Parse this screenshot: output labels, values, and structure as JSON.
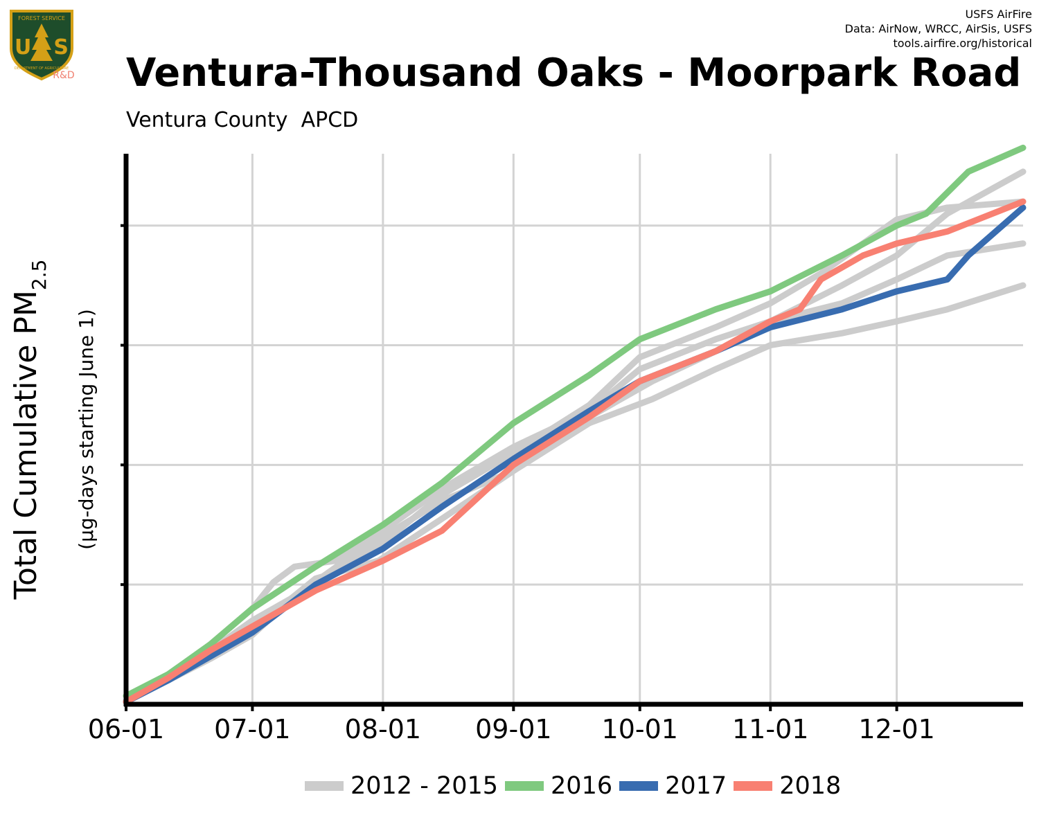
{
  "header": {
    "title": "Ventura-Thousand Oaks - Moorpark Road",
    "subtitle": "Ventura County  APCD",
    "credits": [
      "USFS AirFire",
      "Data: AirNow, WRCC, AirSis, USFS",
      "tools.airfire.org/historical"
    ],
    "logo": {
      "icon": "usfs-shield-logo",
      "text_top": "FOREST SERVICE",
      "text_main": "U S",
      "text_bottom": "DEPARTMENT OF AGRICULTURE",
      "text_rd": "R&D",
      "colors": {
        "shield": "#1e4d2b",
        "border": "#d4a017",
        "rd": "#f08070"
      }
    }
  },
  "chart_data": {
    "type": "line",
    "title": "Ventura-Thousand Oaks - Moorpark Road",
    "ylabel": "Total Cumulative PM",
    "ylabel_subscript": "2.5",
    "ylabel_units": "(µg-days starting June 1)",
    "xlabel": "",
    "x_ticks": [
      {
        "label": "06-01",
        "day": 0
      },
      {
        "label": "07-01",
        "day": 30
      },
      {
        "label": "08-01",
        "day": 61
      },
      {
        "label": "09-01",
        "day": 92
      },
      {
        "label": "10-01",
        "day": 122
      },
      {
        "label": "11-01",
        "day": 153
      },
      {
        "label": "12-01",
        "day": 183
      }
    ],
    "x_range_days": [
      0,
      213
    ],
    "y_range": [
      0,
      4.6
    ],
    "y_gridlines": [
      1,
      2,
      3,
      4
    ],
    "y_tick_labels_shown": false,
    "grid": true,
    "legend_position": "bottom",
    "series": [
      {
        "name": "2012 - 2015",
        "color": "#cccccc",
        "points": [
          [
            0,
            0.03
          ],
          [
            10,
            0.22
          ],
          [
            20,
            0.42
          ],
          [
            30,
            0.62
          ],
          [
            45,
            1.05
          ],
          [
            60,
            1.2
          ],
          [
            75,
            1.55
          ],
          [
            92,
            1.95
          ],
          [
            110,
            2.4
          ],
          [
            125,
            2.7
          ],
          [
            140,
            2.95
          ],
          [
            153,
            3.2
          ],
          [
            170,
            3.5
          ],
          [
            183,
            3.75
          ],
          [
            195,
            4.1
          ],
          [
            213,
            4.45
          ]
        ]
      },
      {
        "name": "2012 - 2015",
        "color": "#cccccc",
        "points": [
          [
            0,
            0.03
          ],
          [
            10,
            0.2
          ],
          [
            20,
            0.38
          ],
          [
            30,
            0.58
          ],
          [
            40,
            0.9
          ],
          [
            50,
            1.15
          ],
          [
            61,
            1.4
          ],
          [
            75,
            1.7
          ],
          [
            92,
            1.95
          ],
          [
            110,
            2.35
          ],
          [
            125,
            2.55
          ],
          [
            140,
            2.8
          ],
          [
            153,
            3.0
          ],
          [
            170,
            3.1
          ],
          [
            183,
            3.2
          ],
          [
            195,
            3.3
          ],
          [
            213,
            3.5
          ]
        ]
      },
      {
        "name": "2012 - 2015",
        "color": "#cccccc",
        "points": [
          [
            0,
            0.03
          ],
          [
            10,
            0.25
          ],
          [
            20,
            0.5
          ],
          [
            30,
            0.8
          ],
          [
            35,
            1.02
          ],
          [
            40,
            1.15
          ],
          [
            50,
            1.2
          ],
          [
            61,
            1.45
          ],
          [
            75,
            1.8
          ],
          [
            92,
            2.15
          ],
          [
            110,
            2.45
          ],
          [
            122,
            2.8
          ],
          [
            140,
            3.05
          ],
          [
            153,
            3.2
          ],
          [
            170,
            3.35
          ],
          [
            183,
            3.55
          ],
          [
            195,
            3.75
          ],
          [
            213,
            3.85
          ]
        ]
      },
      {
        "name": "2012 - 2015",
        "color": "#cccccc",
        "points": [
          [
            0,
            0.03
          ],
          [
            10,
            0.22
          ],
          [
            20,
            0.45
          ],
          [
            30,
            0.7
          ],
          [
            45,
            1.0
          ],
          [
            61,
            1.35
          ],
          [
            75,
            1.75
          ],
          [
            92,
            2.1
          ],
          [
            110,
            2.5
          ],
          [
            122,
            2.9
          ],
          [
            140,
            3.15
          ],
          [
            153,
            3.35
          ],
          [
            165,
            3.6
          ],
          [
            175,
            3.85
          ],
          [
            183,
            4.05
          ],
          [
            195,
            4.15
          ],
          [
            213,
            4.2
          ]
        ]
      },
      {
        "name": "2016",
        "color": "#7fc97f",
        "points": [
          [
            0,
            0.07
          ],
          [
            10,
            0.25
          ],
          [
            20,
            0.5
          ],
          [
            30,
            0.8
          ],
          [
            45,
            1.15
          ],
          [
            61,
            1.5
          ],
          [
            75,
            1.85
          ],
          [
            92,
            2.35
          ],
          [
            110,
            2.75
          ],
          [
            122,
            3.05
          ],
          [
            140,
            3.3
          ],
          [
            153,
            3.45
          ],
          [
            170,
            3.75
          ],
          [
            183,
            4.0
          ],
          [
            190,
            4.1
          ],
          [
            200,
            4.45
          ],
          [
            213,
            4.65
          ]
        ]
      },
      {
        "name": "2017",
        "color": "#386cb0",
        "points": [
          [
            0,
            0.02
          ],
          [
            10,
            0.2
          ],
          [
            20,
            0.4
          ],
          [
            30,
            0.6
          ],
          [
            45,
            1.0
          ],
          [
            61,
            1.3
          ],
          [
            75,
            1.65
          ],
          [
            92,
            2.05
          ],
          [
            110,
            2.45
          ],
          [
            122,
            2.7
          ],
          [
            140,
            2.95
          ],
          [
            153,
            3.15
          ],
          [
            170,
            3.3
          ],
          [
            183,
            3.45
          ],
          [
            195,
            3.55
          ],
          [
            200,
            3.75
          ],
          [
            213,
            4.15
          ]
        ]
      },
      {
        "name": "2018",
        "color": "#f88072",
        "points": [
          [
            0,
            0.02
          ],
          [
            10,
            0.22
          ],
          [
            20,
            0.45
          ],
          [
            30,
            0.65
          ],
          [
            45,
            0.95
          ],
          [
            61,
            1.2
          ],
          [
            75,
            1.45
          ],
          [
            92,
            2.0
          ],
          [
            110,
            2.4
          ],
          [
            122,
            2.7
          ],
          [
            140,
            2.95
          ],
          [
            153,
            3.2
          ],
          [
            160,
            3.3
          ],
          [
            165,
            3.55
          ],
          [
            175,
            3.75
          ],
          [
            183,
            3.85
          ],
          [
            195,
            3.95
          ],
          [
            213,
            4.2
          ]
        ]
      }
    ],
    "legend": [
      {
        "name": "2012 - 2015",
        "color": "#cccccc"
      },
      {
        "name": "2016",
        "color": "#7fc97f"
      },
      {
        "name": "2017",
        "color": "#386cb0"
      },
      {
        "name": "2018",
        "color": "#f88072"
      }
    ]
  }
}
